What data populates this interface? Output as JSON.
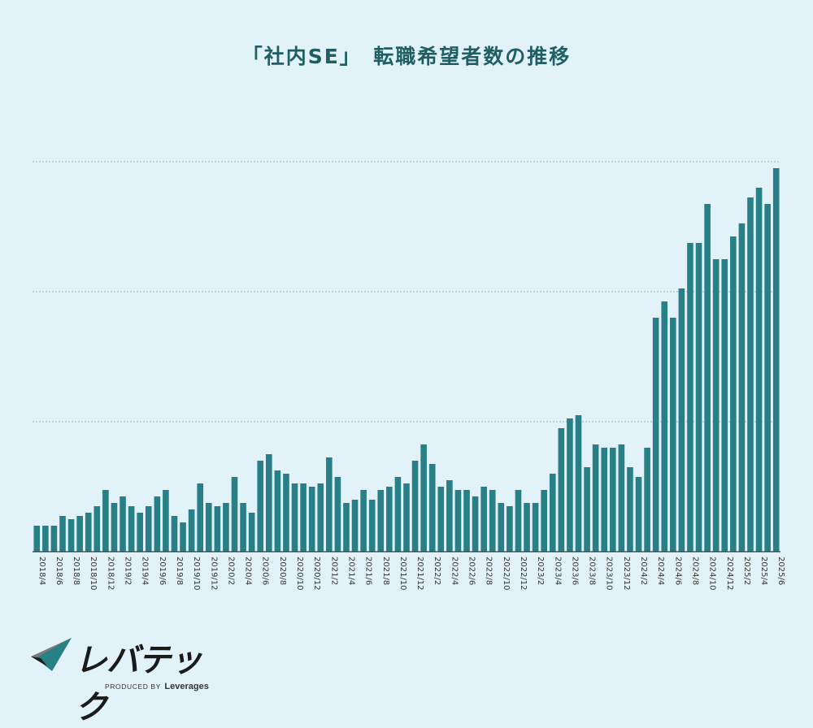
{
  "chart_data": {
    "type": "bar",
    "title": "「社内SE」　転職希望者数の推移",
    "color": "#287f85",
    "grid": true,
    "grid_style": "dotted",
    "y_tick_labels_visible": false,
    "ylim": [
      0,
      100
    ],
    "gridlines": [
      20,
      40,
      60
    ],
    "categories": [
      "2018/4",
      "2018/5",
      "2018/6",
      "2018/7",
      "2018/8",
      "2018/9",
      "2018/10",
      "2018/11",
      "2018/12",
      "2019/1",
      "2019/2",
      "2019/3",
      "2019/4",
      "2019/5",
      "2019/6",
      "2019/7",
      "2019/8",
      "2019/9",
      "2019/10",
      "2019/11",
      "2019/12",
      "2020/1",
      "2020/2",
      "2020/3",
      "2020/4",
      "2020/5",
      "2020/6",
      "2020/7",
      "2020/8",
      "2020/9",
      "2020/10",
      "2020/11",
      "2020/12",
      "2021/1",
      "2021/2",
      "2021/3",
      "2021/4",
      "2021/5",
      "2021/6",
      "2021/7",
      "2021/8",
      "2021/9",
      "2021/10",
      "2021/11",
      "2021/12",
      "2022/1",
      "2022/2",
      "2022/3",
      "2022/4",
      "2022/5",
      "2022/6",
      "2022/7",
      "2022/8",
      "2022/9",
      "2022/10",
      "2022/11",
      "2022/12",
      "2023/1",
      "2023/2",
      "2023/3",
      "2023/4",
      "2023/5",
      "2023/6",
      "2023/7",
      "2023/8",
      "2023/9",
      "2023/10",
      "2023/11",
      "2023/12",
      "2024/1",
      "2024/2",
      "2024/3",
      "2024/4",
      "2024/5",
      "2024/6",
      "2024/7",
      "2024/8",
      "2024/9",
      "2024/10",
      "2024/11",
      "2024/12",
      "2025/1",
      "2025/2",
      "2025/3",
      "2025/4",
      "2025/5",
      "2025/6"
    ],
    "tick_labels": [
      "2018/4",
      "2018/6",
      "2018/8",
      "2018/10",
      "2018/12",
      "2019/2",
      "2019/4",
      "2019/6",
      "2019/8",
      "2019/10",
      "2019/12",
      "2020/2",
      "2020/4",
      "2020/6",
      "2020/8",
      "2020/10",
      "2020/12",
      "2021/2",
      "2021/4",
      "2021/6",
      "2021/8",
      "2021/10",
      "2021/12",
      "2022/2",
      "2022/4",
      "2022/6",
      "2022/8",
      "2022/10",
      "2022/12",
      "2023/2",
      "2023/4",
      "2023/6",
      "2023/8",
      "2023/10",
      "2023/12",
      "2024/2",
      "2024/4",
      "2024/6",
      "2024/8",
      "2024/10",
      "2024/12",
      "2025/2",
      "2025/4",
      "2025/6"
    ],
    "values": [
      4,
      4,
      4,
      5.5,
      5,
      5.5,
      6,
      7,
      9.5,
      7.5,
      8.5,
      7,
      6,
      7,
      8.5,
      9.5,
      5.5,
      4.5,
      6.5,
      10.5,
      7.5,
      7,
      7.5,
      11.5,
      7.5,
      6,
      14,
      15,
      12.5,
      12,
      10.5,
      10.5,
      10,
      10.5,
      14.5,
      11.5,
      7.5,
      8,
      9.5,
      8,
      9.5,
      10,
      11.5,
      10.5,
      14,
      16.5,
      13.5,
      10,
      11,
      9.5,
      9.5,
      8.5,
      10,
      9.5,
      7.5,
      7,
      9.5,
      7.5,
      7.5,
      9.5,
      12,
      19,
      20.5,
      21,
      13,
      16.5,
      16,
      16,
      16.5,
      13,
      11.5,
      16,
      36,
      38.5,
      36,
      40.5,
      47.5,
      47.5,
      53.5,
      45,
      45,
      48.5,
      50.5,
      54.5,
      56,
      53.5,
      59
    ]
  },
  "logo": {
    "name": "レバテック",
    "produced_by": "PRODUCED BY",
    "brand": "Leverages"
  }
}
